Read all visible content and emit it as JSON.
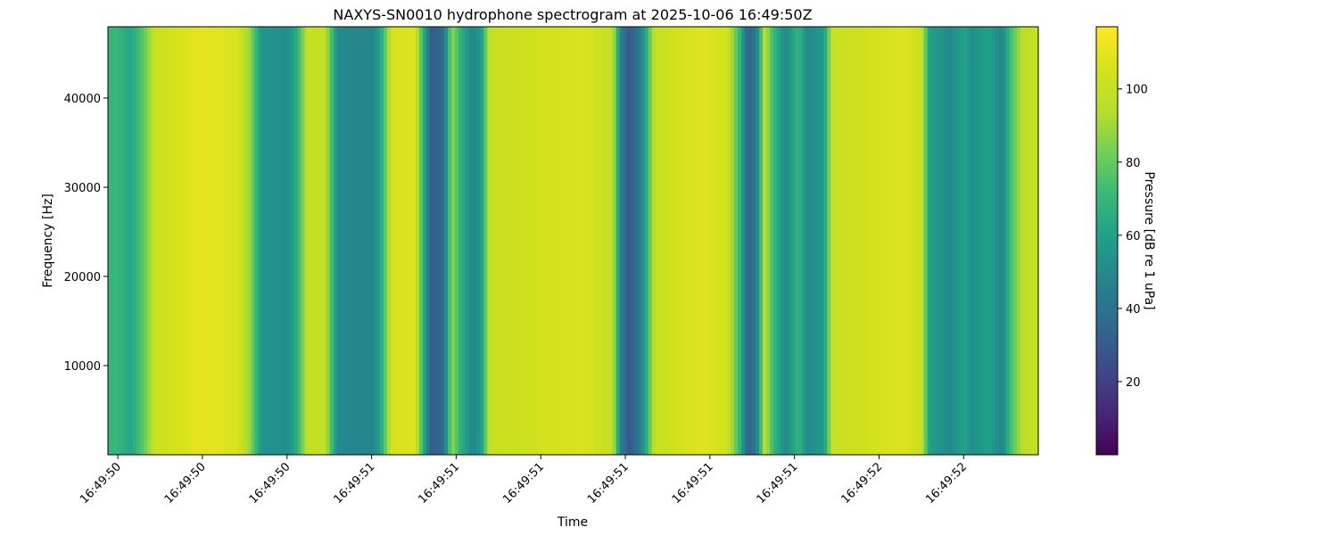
{
  "chart_data": {
    "type": "heatmap",
    "title": "NAXYS-SN0010 hydrophone spectrogram at 2025-10-06 16:49:50Z",
    "xlabel": "Time",
    "ylabel": "Frequency [Hz]",
    "colorbar_label": "Pressure [dB re 1 uPa]",
    "colormap": "viridis",
    "xlim_seconds": [
      0.0,
      2.2
    ],
    "x_ticks": [
      {
        "t": 0.0,
        "label": "16:49:50"
      },
      {
        "t": 0.2,
        "label": "16:49:50"
      },
      {
        "t": 0.4,
        "label": "16:49:50"
      },
      {
        "t": 0.6,
        "label": "16:49:51"
      },
      {
        "t": 0.8,
        "label": "16:49:51"
      },
      {
        "t": 1.0,
        "label": "16:49:51"
      },
      {
        "t": 1.2,
        "label": "16:49:51"
      },
      {
        "t": 1.4,
        "label": "16:49:51"
      },
      {
        "t": 1.6,
        "label": "16:49:51"
      },
      {
        "t": 1.8,
        "label": "16:49:52"
      },
      {
        "t": 2.0,
        "label": "16:49:52"
      }
    ],
    "ylim": [
      0,
      48000
    ],
    "y_ticks": [
      10000,
      20000,
      30000,
      40000
    ],
    "clim": [
      0,
      117
    ],
    "colorbar_ticks": [
      20,
      40,
      60,
      80,
      100
    ],
    "time_profile_db": [
      {
        "t": 0.0,
        "db": 70
      },
      {
        "t": 0.03,
        "db": 62
      },
      {
        "t": 0.06,
        "db": 78
      },
      {
        "t": 0.09,
        "db": 102
      },
      {
        "t": 0.2,
        "db": 110
      },
      {
        "t": 0.28,
        "db": 107
      },
      {
        "t": 0.31,
        "db": 90
      },
      {
        "t": 0.34,
        "db": 55
      },
      {
        "t": 0.4,
        "db": 52
      },
      {
        "t": 0.42,
        "db": 62
      },
      {
        "t": 0.45,
        "db": 100
      },
      {
        "t": 0.49,
        "db": 98
      },
      {
        "t": 0.52,
        "db": 50
      },
      {
        "t": 0.6,
        "db": 48
      },
      {
        "t": 0.62,
        "db": 60
      },
      {
        "t": 0.65,
        "db": 106
      },
      {
        "t": 0.7,
        "db": 108
      },
      {
        "t": 0.72,
        "db": 72
      },
      {
        "t": 0.74,
        "db": 30
      },
      {
        "t": 0.77,
        "db": 38
      },
      {
        "t": 0.79,
        "db": 88
      },
      {
        "t": 0.81,
        "db": 68
      },
      {
        "t": 0.84,
        "db": 48
      },
      {
        "t": 0.86,
        "db": 60
      },
      {
        "t": 0.88,
        "db": 100
      },
      {
        "t": 1.1,
        "db": 107
      },
      {
        "t": 1.17,
        "db": 98
      },
      {
        "t": 1.19,
        "db": 45
      },
      {
        "t": 1.21,
        "db": 28
      },
      {
        "t": 1.24,
        "db": 50
      },
      {
        "t": 1.27,
        "db": 100
      },
      {
        "t": 1.38,
        "db": 109
      },
      {
        "t": 1.44,
        "db": 104
      },
      {
        "t": 1.47,
        "db": 70
      },
      {
        "t": 1.49,
        "db": 32
      },
      {
        "t": 1.51,
        "db": 45
      },
      {
        "t": 1.53,
        "db": 98
      },
      {
        "t": 1.55,
        "db": 70
      },
      {
        "t": 1.58,
        "db": 50
      },
      {
        "t": 1.61,
        "db": 70
      },
      {
        "t": 1.63,
        "db": 50
      },
      {
        "t": 1.67,
        "db": 58
      },
      {
        "t": 1.69,
        "db": 100
      },
      {
        "t": 1.86,
        "db": 108
      },
      {
        "t": 1.9,
        "db": 100
      },
      {
        "t": 1.92,
        "db": 58
      },
      {
        "t": 1.97,
        "db": 50
      },
      {
        "t": 2.0,
        "db": 62
      },
      {
        "t": 2.02,
        "db": 52
      },
      {
        "t": 2.06,
        "db": 60
      },
      {
        "t": 2.09,
        "db": 48
      },
      {
        "t": 2.11,
        "db": 72
      },
      {
        "t": 2.14,
        "db": 96
      },
      {
        "t": 2.2,
        "db": 102
      }
    ]
  }
}
